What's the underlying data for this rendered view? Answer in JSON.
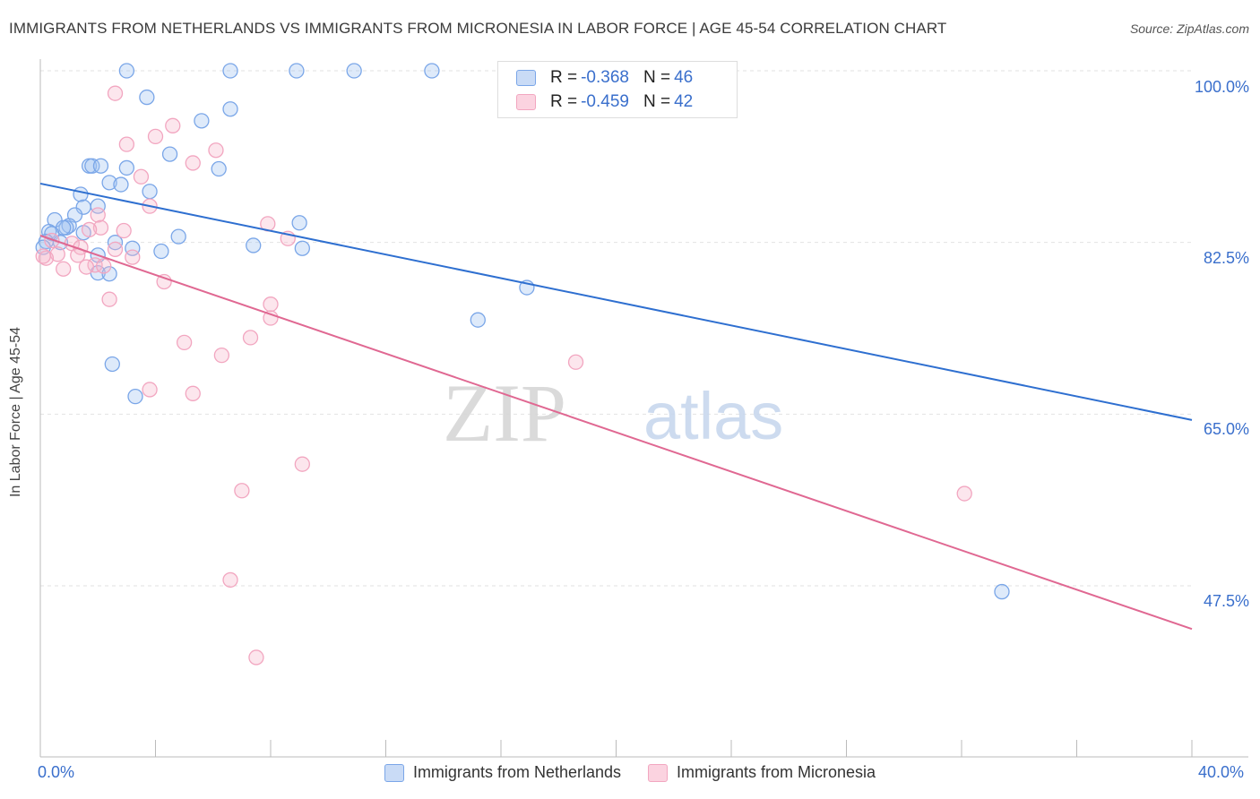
{
  "title": "IMMIGRANTS FROM NETHERLANDS VS IMMIGRANTS FROM MICRONESIA IN LABOR FORCE | AGE 45-54 CORRELATION CHART",
  "source": "Source: ZipAtlas.com",
  "watermark": {
    "zip": "ZIP",
    "atlas": "atlas"
  },
  "legend_top": [
    {
      "r_label": "R =",
      "r_value": "-0.368",
      "n_label": "N =",
      "n_value": "46"
    },
    {
      "r_label": "R =",
      "r_value": "-0.459",
      "n_label": "N =",
      "n_value": "42"
    }
  ],
  "chart_data": {
    "type": "scatter",
    "title": "IMMIGRANTS FROM NETHERLANDS VS IMMIGRANTS FROM MICRONESIA IN LABOR FORCE | AGE 45-54 CORRELATION CHART",
    "xlabel": "",
    "ylabel": "In Labor Force | Age 45-54",
    "xlim": [
      0,
      40
    ],
    "ylim": [
      33,
      102
    ],
    "x_tick_labels": [
      "0.0%",
      "40.0%"
    ],
    "y_ticks": [
      47.5,
      65.0,
      82.5,
      100.0
    ],
    "y_tick_labels": [
      "47.5%",
      "65.0%",
      "82.5%",
      "100.0%"
    ],
    "grid": true,
    "legend_position": "bottom",
    "series": [
      {
        "name": "Immigrants from Netherlands",
        "color": "#7aa6e8",
        "line_color": "#2e6fd0",
        "trend": {
          "x": [
            0,
            40
          ],
          "y": [
            88.5,
            64.4
          ]
        },
        "points": [
          [
            3.0,
            100.0
          ],
          [
            6.6,
            100.0
          ],
          [
            8.9,
            100.0
          ],
          [
            10.9,
            100.0
          ],
          [
            13.6,
            100.0
          ],
          [
            3.7,
            97.3
          ],
          [
            6.6,
            96.1
          ],
          [
            5.6,
            94.9
          ],
          [
            4.5,
            91.5
          ],
          [
            6.2,
            90.0
          ],
          [
            1.7,
            90.3
          ],
          [
            1.8,
            90.3
          ],
          [
            2.1,
            90.3
          ],
          [
            3.0,
            90.1
          ],
          [
            2.4,
            88.6
          ],
          [
            2.8,
            88.4
          ],
          [
            3.8,
            87.7
          ],
          [
            1.4,
            87.4
          ],
          [
            2.0,
            86.2
          ],
          [
            1.5,
            86.1
          ],
          [
            1.2,
            85.3
          ],
          [
            0.5,
            84.8
          ],
          [
            9.0,
            84.5
          ],
          [
            1.0,
            84.2
          ],
          [
            0.9,
            84.0
          ],
          [
            0.8,
            84.0
          ],
          [
            0.3,
            83.6
          ],
          [
            1.5,
            83.5
          ],
          [
            0.4,
            83.4
          ],
          [
            4.8,
            83.1
          ],
          [
            0.2,
            82.6
          ],
          [
            0.7,
            82.5
          ],
          [
            2.6,
            82.5
          ],
          [
            7.4,
            82.2
          ],
          [
            3.2,
            81.9
          ],
          [
            9.1,
            81.9
          ],
          [
            4.2,
            81.6
          ],
          [
            2.0,
            81.2
          ],
          [
            2.0,
            79.4
          ],
          [
            2.4,
            79.3
          ],
          [
            16.9,
            77.9
          ],
          [
            15.2,
            74.6
          ],
          [
            2.5,
            70.1
          ],
          [
            3.3,
            66.8
          ],
          [
            33.4,
            46.9
          ],
          [
            0.1,
            82.0
          ]
        ]
      },
      {
        "name": "Immigrants from Micronesia",
        "color": "#f2a6c0",
        "line_color": "#e06892",
        "trend": {
          "x": [
            0,
            40
          ],
          "y": [
            83.2,
            43.1
          ]
        },
        "points": [
          [
            2.6,
            97.7
          ],
          [
            4.6,
            94.4
          ],
          [
            4.0,
            93.3
          ],
          [
            3.0,
            92.5
          ],
          [
            6.1,
            91.9
          ],
          [
            5.3,
            90.6
          ],
          [
            3.5,
            89.2
          ],
          [
            3.8,
            86.2
          ],
          [
            2.0,
            85.3
          ],
          [
            7.9,
            84.4
          ],
          [
            2.1,
            84.0
          ],
          [
            1.7,
            83.8
          ],
          [
            2.9,
            83.7
          ],
          [
            8.6,
            82.9
          ],
          [
            1.1,
            82.4
          ],
          [
            1.4,
            82.0
          ],
          [
            2.6,
            81.8
          ],
          [
            0.6,
            81.3
          ],
          [
            3.2,
            81.0
          ],
          [
            0.2,
            80.9
          ],
          [
            1.9,
            80.2
          ],
          [
            2.2,
            80.1
          ],
          [
            1.6,
            80.0
          ],
          [
            0.8,
            79.8
          ],
          [
            4.3,
            78.5
          ],
          [
            2.4,
            76.7
          ],
          [
            8.0,
            76.2
          ],
          [
            8.0,
            74.8
          ],
          [
            7.3,
            72.8
          ],
          [
            5.0,
            72.3
          ],
          [
            6.3,
            71.0
          ],
          [
            18.6,
            70.3
          ],
          [
            3.8,
            67.5
          ],
          [
            5.3,
            67.1
          ],
          [
            9.1,
            59.9
          ],
          [
            7.0,
            57.2
          ],
          [
            32.1,
            56.9
          ],
          [
            6.6,
            48.1
          ],
          [
            7.5,
            40.2
          ],
          [
            0.1,
            81.1
          ],
          [
            0.4,
            82.7
          ],
          [
            1.3,
            81.2
          ]
        ]
      }
    ]
  }
}
